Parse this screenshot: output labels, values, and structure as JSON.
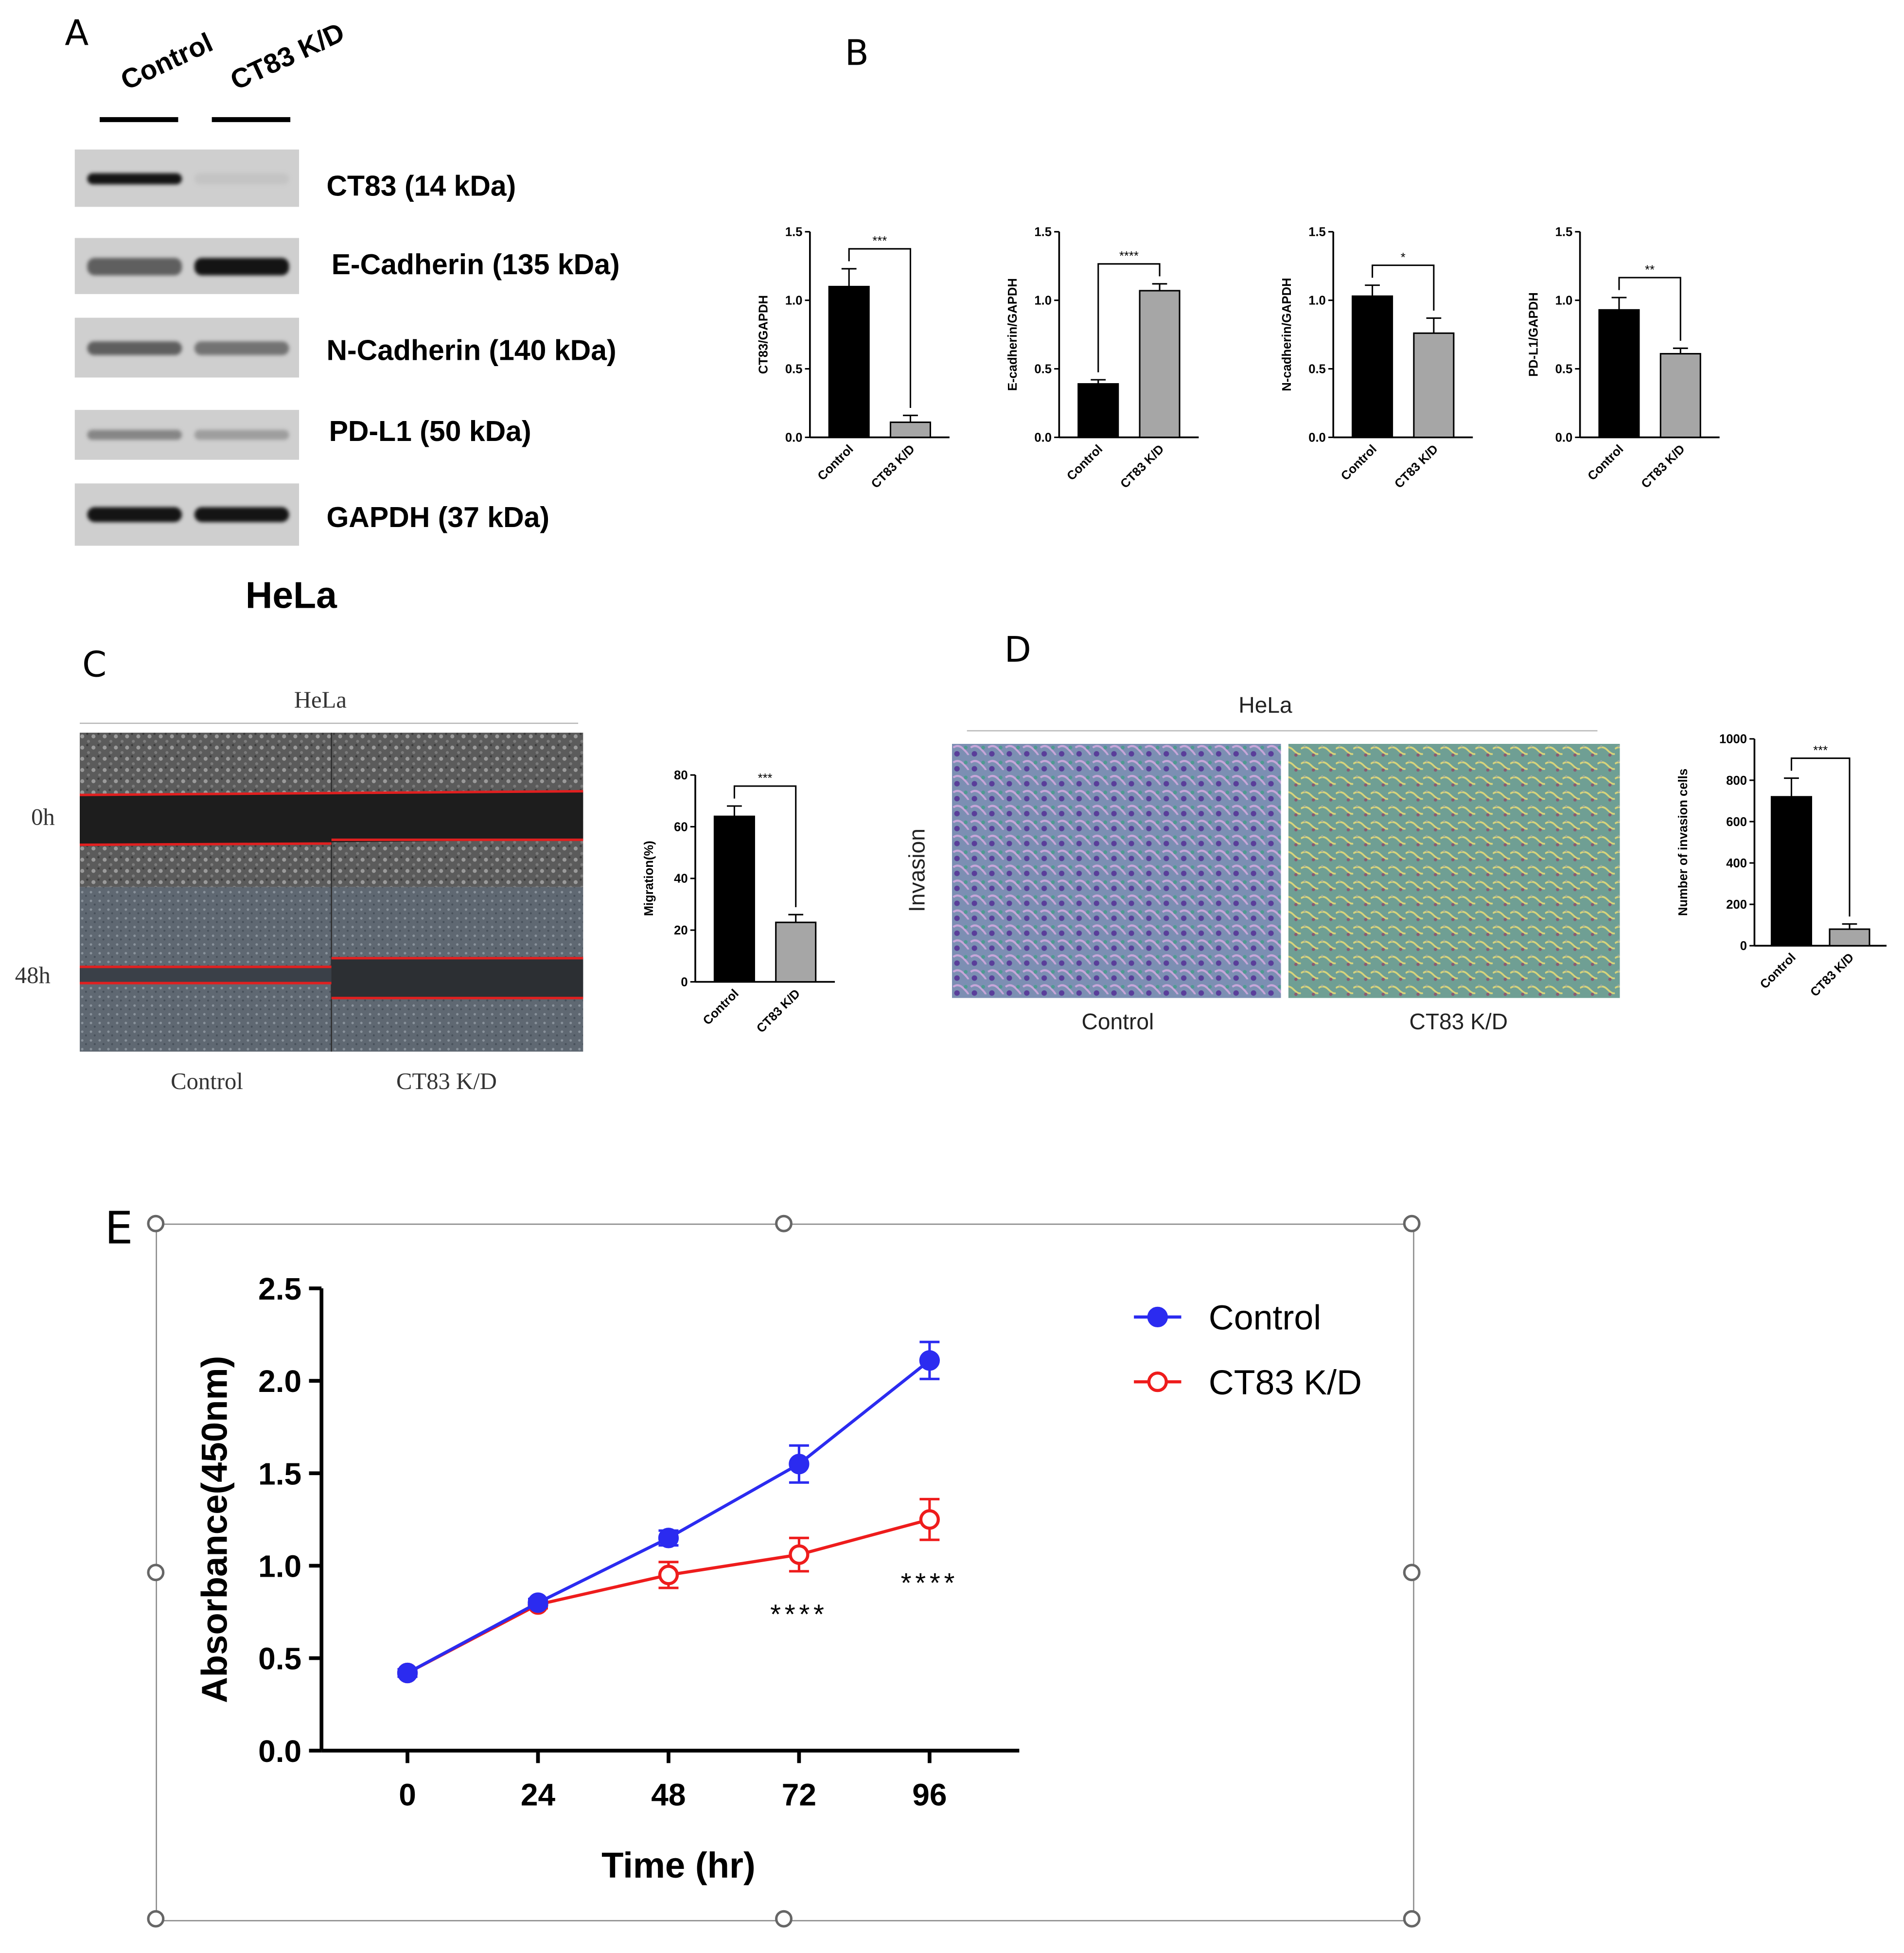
{
  "panels": {
    "a": "A",
    "b": "B",
    "c": "C",
    "d": "D",
    "e": "E"
  },
  "western_blot": {
    "lanes": [
      "Control",
      "CT83 K/D"
    ],
    "bands": [
      {
        "label": "CT83 (14 kDa)",
        "control": 0.95,
        "knockdown": 0.02
      },
      {
        "label": "E-Cadherin (135 kDa)",
        "control": 0.55,
        "knockdown": 0.95
      },
      {
        "label": "N-Cadherin (140 kDa)",
        "control": 0.55,
        "knockdown": 0.45
      },
      {
        "label": "PD-L1 (50 kDa)",
        "control": 0.35,
        "knockdown": 0.22
      },
      {
        "label": "GAPDH (37 kDa)",
        "control": 0.95,
        "knockdown": 0.95
      }
    ],
    "cell_line": "HeLa"
  },
  "chart_data": [
    {
      "id": "ct83",
      "type": "bar",
      "ylabel": "CT83/GAPDH",
      "categories": [
        "Control",
        "CT83 K/D"
      ],
      "values": [
        1.1,
        0.11
      ],
      "errors": [
        0.13,
        0.05
      ],
      "ylim": [
        0,
        1.5
      ],
      "yticks": [
        "0.0",
        "0.5",
        "1.0",
        "1.5"
      ],
      "significance": "***"
    },
    {
      "id": "ecad",
      "type": "bar",
      "ylabel": "E-cadherin/GAPDH",
      "categories": [
        "Control",
        "CT83 K/D"
      ],
      "values": [
        0.39,
        1.07
      ],
      "errors": [
        0.03,
        0.05
      ],
      "ylim": [
        0,
        1.5
      ],
      "yticks": [
        "0.0",
        "0.5",
        "1.0",
        "1.5"
      ],
      "significance": "****"
    },
    {
      "id": "ncad",
      "type": "bar",
      "ylabel": "N-cadherin/GAPDH",
      "categories": [
        "Control",
        "CT83 K/D"
      ],
      "values": [
        1.03,
        0.76
      ],
      "errors": [
        0.08,
        0.11
      ],
      "ylim": [
        0,
        1.5
      ],
      "yticks": [
        "0.0",
        "0.5",
        "1.0",
        "1.5"
      ],
      "significance": "*"
    },
    {
      "id": "pdl1",
      "type": "bar",
      "ylabel": "PD-L1/GAPDH",
      "categories": [
        "Control",
        "CT83 K/D"
      ],
      "values": [
        0.93,
        0.61
      ],
      "errors": [
        0.09,
        0.04
      ],
      "ylim": [
        0,
        1.5
      ],
      "yticks": [
        "0.0",
        "0.5",
        "1.0",
        "1.5"
      ],
      "significance": "**"
    },
    {
      "id": "migration",
      "type": "bar",
      "ylabel": "Migration(%)",
      "categories": [
        "Control",
        "CT83 K/D"
      ],
      "values": [
        64,
        23
      ],
      "errors": [
        4,
        3
      ],
      "ylim": [
        0,
        80
      ],
      "yticks": [
        "0",
        "20",
        "40",
        "60",
        "80"
      ],
      "significance": "***"
    },
    {
      "id": "invasion",
      "type": "bar",
      "ylabel": "Number of invasion cells",
      "categories": [
        "Control",
        "CT83 K/D"
      ],
      "values": [
        720,
        80
      ],
      "errors": [
        90,
        25
      ],
      "ylim": [
        0,
        1000
      ],
      "yticks": [
        "0",
        "200",
        "400",
        "600",
        "800",
        "1000"
      ],
      "significance": "***"
    },
    {
      "id": "proliferation",
      "type": "line",
      "xlabel": "Time (hr)",
      "ylabel": "Absorbance(450nm)",
      "x": [
        0,
        24,
        48,
        72,
        96
      ],
      "xlim": [
        0,
        96
      ],
      "ylim": [
        0,
        2.5
      ],
      "xticks": [
        "0",
        "24",
        "48",
        "72",
        "96"
      ],
      "yticks": [
        "0.0",
        "0.5",
        "1.0",
        "1.5",
        "2.0",
        "2.5"
      ],
      "series": [
        {
          "name": "Control",
          "values": [
            0.42,
            0.8,
            1.15,
            1.55,
            2.11
          ],
          "errors": [
            0.02,
            0.02,
            0.04,
            0.1,
            0.1
          ],
          "color": "#2b2bf0",
          "marker": "filled-circle"
        },
        {
          "name": "CT83 K/D",
          "values": [
            0.42,
            0.79,
            0.95,
            1.06,
            1.25
          ],
          "errors": [
            0.02,
            0.02,
            0.07,
            0.09,
            0.11
          ],
          "color": "#ee1c1c",
          "marker": "open-circle"
        }
      ],
      "annotations": [
        {
          "x": 72,
          "text": "****"
        },
        {
          "x": 96,
          "text": "****"
        }
      ]
    }
  ],
  "migration_assay": {
    "title": "HeLa",
    "timepoints": [
      "0h",
      "48h"
    ],
    "conditions": [
      "Control",
      "CT83 K/D"
    ]
  },
  "invasion_assay": {
    "title": "HeLa",
    "row_label": "Invasion",
    "conditions": [
      "Control",
      "CT83 K/D"
    ]
  },
  "colors": {
    "control_bar": "#000000",
    "kd_bar": "#a6a6a6",
    "wound_line": "#e02020"
  }
}
